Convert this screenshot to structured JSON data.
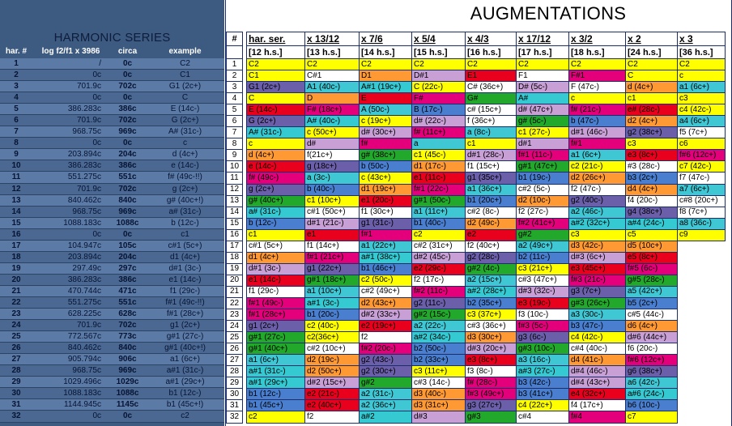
{
  "left": {
    "title": "HARMONIC SERIES",
    "headers": [
      "har. #",
      "log f2/f1 x 3986",
      "circa",
      "example"
    ],
    "rows": [
      [
        "1",
        "/",
        "0c",
        "C2"
      ],
      [
        "2",
        "0c",
        "0c",
        "C1"
      ],
      [
        "3",
        "701.9c",
        "702c",
        "G1  (2c+)"
      ],
      [
        "4",
        "0c",
        "0c",
        "C"
      ],
      [
        "5",
        "386.283c",
        "386c",
        "E  (14c-)"
      ],
      [
        "6",
        "701.9c",
        "702c",
        "G  (2c+)"
      ],
      [
        "7",
        "968.75c",
        "969c",
        "A#  (31c-)"
      ],
      [
        "8",
        "0c",
        "0c",
        "c"
      ],
      [
        "9",
        "203.894c",
        "204c",
        "d  (4c+)"
      ],
      [
        "10",
        "386.283c",
        "386c",
        "e  (14c-)"
      ],
      [
        "11",
        "551.275c",
        "551c",
        "f#  (49c-!!)"
      ],
      [
        "12",
        "701.9c",
        "702c",
        "g  (2c+)"
      ],
      [
        "13",
        "840.462c",
        "840c",
        "g#  (40c+!)"
      ],
      [
        "14",
        "968.75c",
        "969c",
        "a#  (31c-)"
      ],
      [
        "15",
        "1088.183c",
        "1088c",
        "b  (12c-)"
      ],
      [
        "16",
        "0c",
        "0c",
        "c1"
      ],
      [
        "17",
        "104.947c",
        "105c",
        "c#1  (5c+)"
      ],
      [
        "18",
        "203.894c",
        "204c",
        "d1  (4c+)"
      ],
      [
        "19",
        "297.49c",
        "297c",
        "d#1  (3c-)"
      ],
      [
        "20",
        "386.283c",
        "386c",
        "e1  (14c-)"
      ],
      [
        "21",
        "470.744c",
        "471c",
        "f1  (29c-)"
      ],
      [
        "22",
        "551.275c",
        "551c",
        "f#1  (49c-!!)"
      ],
      [
        "23",
        "628.225c",
        "628c",
        "f#1  (28c+)"
      ],
      [
        "24",
        "701.9c",
        "702c",
        "g1  (2c+)"
      ],
      [
        "25",
        "772.567c",
        "773c",
        "g#1  (27c-)"
      ],
      [
        "26",
        "840.462c",
        "840c",
        "g#1  (40c+!)"
      ],
      [
        "27",
        "905.794c",
        "906c",
        "a1  (6c+)"
      ],
      [
        "28",
        "968.75c",
        "969c",
        "a#1  (31c-)"
      ],
      [
        "29",
        "1029.496c",
        "1029c",
        "a#1  (29c+)"
      ],
      [
        "30",
        "1088.183c",
        "1088c",
        "b1  (12c-)"
      ],
      [
        "31",
        "1144.945c",
        "1145c",
        "b1  (45c+!)"
      ],
      [
        "32",
        "0c",
        "0c",
        "c2"
      ]
    ]
  },
  "augmentations": {
    "title": "AUGMENTATIONS",
    "index_header": "#",
    "columns": [
      {
        "label": "har. ser.",
        "sub": "[12 h.s.]"
      },
      {
        "label": "x 13/12",
        "sub": "[13 h.s.]"
      },
      {
        "label": "x 7/6",
        "sub": "[14 h.s.]"
      },
      {
        "label": "x 5/4",
        "sub": "[15 h.s.]"
      },
      {
        "label": "x 4/3",
        "sub": "[16 h.s.]"
      },
      {
        "label": "x 17/12",
        "sub": "[17 h.s.]"
      },
      {
        "label": "x 3/2",
        "sub": "[18 h.s.]"
      },
      {
        "label": "x 2",
        "sub": "[24 h.s.]"
      },
      {
        "label": "x 3",
        "sub": "[36 h.s.]"
      }
    ],
    "rows": [
      [
        "C2",
        "C2",
        "C2",
        "C2",
        "C2",
        "C2",
        "C2",
        "C2",
        "C2"
      ],
      [
        "C1",
        "C#1",
        "D1",
        "D#1",
        "E1",
        "F1",
        "F#1",
        "C",
        "c"
      ],
      [
        "G1 (2c+)",
        "A1 (40c-)",
        "A#1 (19c+)",
        "C (22c-)",
        "C# (36c+)",
        "D# (5c-)",
        "F (47c-)",
        "d (4c+)",
        "a1 (6c+)"
      ],
      [
        "C",
        "D",
        "E",
        "F#",
        "G#",
        "A#",
        "c",
        "c1",
        "c3"
      ],
      [
        "E (14c-)",
        "F# (18c+)",
        "A (50c-)",
        "B (17c-)",
        "c# (15c+)",
        "d# (47c+)",
        "f# (21c-)",
        "e# (28c-)",
        "c4 (42c-)"
      ],
      [
        "G (2c+)",
        "A# (40c-)",
        "c (19c+)",
        "d# (22c-)",
        "f (36c+)",
        "g# (5c-)",
        "b (47c-)",
        "d2 (4c+)",
        "a4 (6c+)"
      ],
      [
        "A# (31c-)",
        "c (50c+)",
        "d# (30c+)",
        "f# (11c+)",
        "a (8c-)",
        "c1 (27c-)",
        "d#1 (46c-)",
        "g2 (38c+)",
        "f5 (7c+)"
      ],
      [
        "c",
        "d#",
        "f#",
        "a",
        "c1",
        "d#1",
        "f#1",
        "c3",
        "c6"
      ],
      [
        "d (4c+)",
        "f(21c+)",
        "g# (38c+)",
        "c1 (45c-)",
        "d#1 (28c-)",
        "f#1 (11c-)",
        "a1 (6c+)",
        "e3 (8c+)",
        "f#6 (12c+)"
      ],
      [
        "e (14c-)",
        "g (18c+)",
        "b (50c-)",
        "d1 (17c-)",
        "f1 (15c+)",
        "g#1 (47c+)",
        "c2 (21c-)",
        "#3 (28c-)",
        "c7 (42c-)"
      ],
      [
        "f# (49c-)",
        "a (3c-)",
        "c (43c+)",
        "e1 (11c-)",
        "g1 (35c+)",
        "b1 (19c-)",
        "d2 (26c+)",
        "b3 (2c+)",
        "f7 (47c-)"
      ],
      [
        "g (2c+)",
        "b (40c-)",
        "d1 (19c+)",
        "f#1 (22c-)",
        "a1 (36c+)",
        "c#2 (5c-)",
        "f2 (47c-)",
        "d4 (4c+)",
        "a7 (6c+)"
      ],
      [
        "g# (40c+)",
        "c1 (10c+)",
        "e1 (20c-)",
        "g#1 (50c-)",
        "b1 (20c+)",
        "d2 (10c-)",
        "g2 (40c-)",
        "f4 (20c-)",
        "c#8 (20c+)"
      ],
      [
        "a# (31c-)",
        "c#1 (50c+)",
        "f1 (30c+)",
        "a1 (11c+)",
        "c#2 (8c-)",
        "f2 (27c-)",
        "a2 (46c-)",
        "g4 (38c+)",
        "f8 (7c+)"
      ],
      [
        "b (12c-)",
        "d#1 (21c-)",
        "g1 (31c-)",
        "b1 (40c-)",
        "d2 (49c-)",
        "f#2 (41c+)",
        "a#2 (32c+)",
        "a#4 (24c-)",
        "a8 (36c-)"
      ],
      [
        "c1",
        "e1",
        "f#1",
        "c2",
        "e2",
        "g#2",
        "c3",
        "c5",
        "c9"
      ],
      [
        "c#1 (5c+)",
        "f1 (14c+)",
        "a1 (22c+)",
        "c#2 (31c+)",
        "f2 (40c+)",
        "a2 (49c+)",
        "d3 (42c-)",
        "d5 (10c+)",
        ""
      ],
      [
        "d1 (4c+)",
        "f#1 (21c+)",
        "a#1 (38c+)",
        "d#2 (45c-)",
        "g2 (28c-)",
        "b2 (11c-)",
        "d#3 (6c+)",
        "e5 (8c+)",
        ""
      ],
      [
        "d#1 (3c-)",
        "g1 (22c+)",
        "b1 (46c+)",
        "e2 (29c-)",
        "g#2 (4c-)",
        "c3 (21c+)",
        "e3 (45c+)",
        "f#5 (6c-)",
        ""
      ],
      [
        "e1 (14c-)",
        "g#1 (18c+)",
        "c2 (50c-)",
        "f2 (17c-)",
        "a2 (15c+)",
        "c#3 (47c+)",
        "f#3 (21c-)",
        "g#5 (28c-)",
        ""
      ],
      [
        "f1 (29c-)",
        "a1 (10c+)",
        "c#2 (49c+)",
        "f#2 (11c-)",
        "a#2 (28c+)",
        "d#3 (32c-)",
        "g3 (7c+)",
        "a5 (42c+)",
        ""
      ],
      [
        "f#1 (49c-)",
        "a#1 (3c-)",
        "d2 (43c+)",
        "g2 (11c-)",
        "b2 (35c+)",
        "e3 (19c-)",
        "g#3 (26c+)",
        "b5 (2c+)",
        ""
      ],
      [
        "f#1 (28c+)",
        "b1 (20c-)",
        "d#2 (33c+)",
        "g#2 (15c-)",
        "c3 (37c+)",
        "f3 (10c-)",
        "a3 (30c-)",
        "c#5 (44c-)",
        ""
      ],
      [
        "g1 (2c+)",
        "c2 (40c-)",
        "e2 (19c+)",
        "a2 (22c-)",
        "c#3 (36c+)",
        "f#3 (5c-)",
        "b3 (47c-)",
        "d6 (4c+)",
        ""
      ],
      [
        "g#1 (27c-)",
        "c2(36c+)",
        "f2",
        "a#2 (34c-)",
        "d3 (30c+)",
        "g3 (6c-)",
        "c4 (42c-)",
        "d#6 (44c+)",
        ""
      ],
      [
        "g#1 (40c+)",
        "c#2 (10c+)",
        "f#2 (20c-)",
        "b2 (50c-)",
        "d#3 (20c+)",
        "g#3 (10c-)",
        "c#4 (40c-)",
        "f6 (20c-)",
        ""
      ],
      [
        "a1 (6c+)",
        "d2 (19c-)",
        "g2 (43c-)",
        "b2 (33c+)",
        "e3 (8c+)",
        "a3 (16c-)",
        "d4 (41c-)",
        "f#6 (12c+)",
        ""
      ],
      [
        "a#1 (31c-)",
        "d2 (50c+)",
        "g2 (30c+)",
        "c3 (11c+)",
        "f3 (8c-)",
        "a#3 (27c-)",
        "d#4 (46c-)",
        "g6 (38c+)",
        ""
      ],
      [
        "a#1 (29c+)",
        "d#2 (15c+)",
        "g#2",
        "c#3 (14c-)",
        "f# (28c-)",
        "b3 (42c-)",
        "d#4 (43c+)",
        "a6 (42c-)",
        ""
      ],
      [
        "b1 (12c-)",
        "e2 (21c-)",
        "a2 (31c-)",
        "d3 (40c-)",
        "f#3 (49c+)",
        "b3 (41c+)",
        "e4 (32c+)",
        "a#6 (24c-)",
        ""
      ],
      [
        "b1 (45c+)",
        "e2 (40c+)",
        "a2 (36c+)",
        "d3 (31c+)",
        "g3 (27c+)",
        "c4 (22c+)",
        "f4 (17c+)",
        "b6 (10c-)",
        ""
      ],
      [
        "c2",
        "f2",
        "a#2",
        "d#3",
        "g#3",
        "c#4",
        "f#4",
        "c7",
        ""
      ]
    ],
    "colors": {
      "c": "#ffff00",
      "d": "#ff9933",
      "ds": "#c9a0d6",
      "e": "#e8001c",
      "f": "#ffffff",
      "fs": "#e3007a",
      "g": "#6a5fa8",
      "gs": "#22a82a",
      "a": "#3fc7d4",
      "as": "#35c9d1",
      "b": "#4a7fd0",
      "cs": "#ffffff"
    }
  }
}
